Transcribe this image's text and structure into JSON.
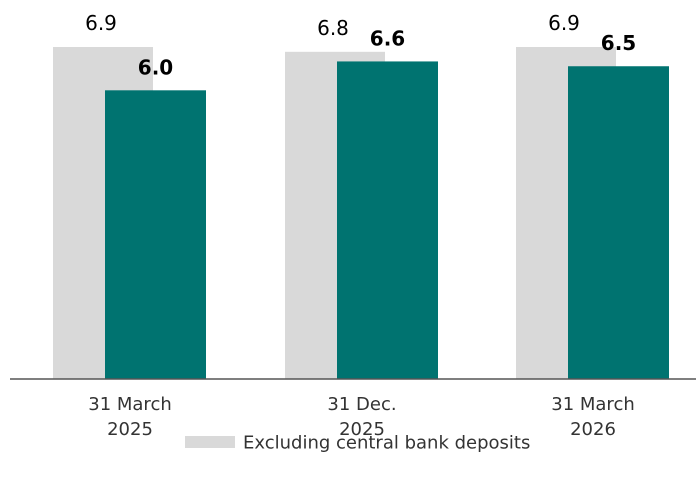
{
  "chart_data": {
    "type": "bar",
    "categories": [
      [
        "31 March",
        "2025"
      ],
      [
        "31 Dec.",
        "2025"
      ],
      [
        "31 March",
        "2026"
      ]
    ],
    "series": [
      {
        "name": "Excluding central bank deposits",
        "values": [
          6.9,
          6.8,
          6.9
        ],
        "value_labels": [
          "6.9",
          "6.8",
          "6.9"
        ],
        "color": "#d9d9d9"
      },
      {
        "values": [
          6.0,
          6.6,
          6.5
        ],
        "value_labels": [
          "6.0",
          "6.6",
          "6.5"
        ],
        "color": "#007370"
      }
    ],
    "ylim": [
      0,
      6.9
    ],
    "grid": false,
    "legend": "bottom-center",
    "title": "",
    "xlabel": "",
    "ylabel": ""
  }
}
